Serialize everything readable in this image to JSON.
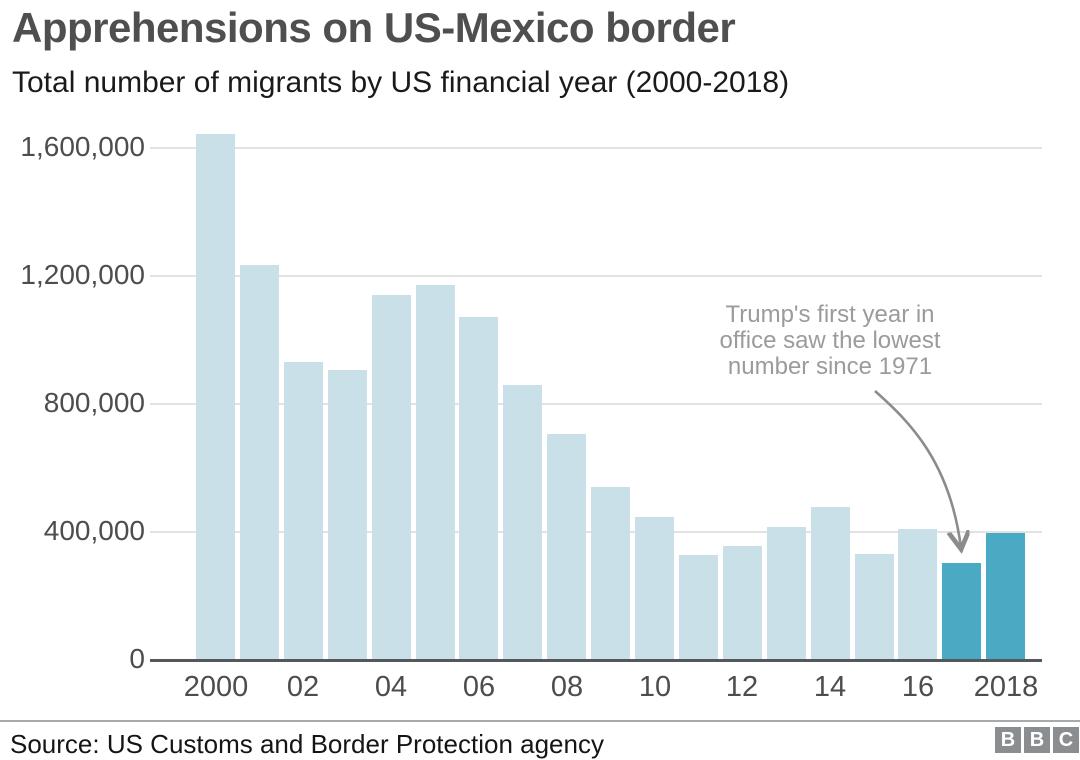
{
  "header": {
    "title": "Apprehensions on US-Mexico border",
    "subtitle": "Total number of migrants by US financial year (2000-2018)"
  },
  "chart_data": {
    "type": "bar",
    "title": "Apprehensions on US-Mexico border",
    "subtitle": "Total number of migrants by US financial year (2000-2018)",
    "xlabel": "US financial year",
    "ylabel": "Total number of migrants",
    "categories": [
      "2000",
      "2001",
      "2002",
      "2003",
      "2004",
      "2005",
      "2006",
      "2007",
      "2008",
      "2009",
      "2010",
      "2011",
      "2012",
      "2013",
      "2014",
      "2015",
      "2016",
      "2017",
      "2018"
    ],
    "values": [
      1643679,
      1235718,
      929809,
      905065,
      1139282,
      1171396,
      1071972,
      858638,
      705005,
      540865,
      447731,
      327577,
      356873,
      414397,
      479371,
      331333,
      408870,
      303916,
      396579
    ],
    "ylim": [
      0,
      1700000
    ],
    "grid": "horizontal",
    "legend": "none",
    "y_ticks": [
      {
        "value": 1600000,
        "label": "1,600,000"
      },
      {
        "value": 1200000,
        "label": "1,200,000"
      },
      {
        "value": 800000,
        "label": "800,000"
      },
      {
        "value": 400000,
        "label": "400,000"
      },
      {
        "value": 0,
        "label": "0"
      }
    ],
    "x_ticks": [
      {
        "index": 0,
        "label": "2000"
      },
      {
        "index": 2,
        "label": "02"
      },
      {
        "index": 4,
        "label": "04"
      },
      {
        "index": 6,
        "label": "06"
      },
      {
        "index": 8,
        "label": "08"
      },
      {
        "index": 10,
        "label": "10"
      },
      {
        "index": 12,
        "label": "12"
      },
      {
        "index": 14,
        "label": "14"
      },
      {
        "index": 16,
        "label": "16"
      },
      {
        "index": 18,
        "label": "2018"
      }
    ],
    "highlight_categories": [
      "2017",
      "2018"
    ],
    "colors": {
      "bar_default": "#c9e0e9",
      "bar_highlight": "#4aa9c3",
      "gridline": "#e2e2e2",
      "axis": "#54585a",
      "annotation_text": "#9b9b9b",
      "arrow": "#8c8c8c"
    },
    "annotation": {
      "text": "Trump's first year in office saw the lowest number since 1971",
      "lines": [
        "Trump's first year in",
        "office saw the lowest",
        "number since 1971"
      ],
      "target_category": "2017"
    }
  },
  "footer": {
    "source": "Source: US Customs and Border Protection agency",
    "logo_letters": [
      "B",
      "B",
      "C"
    ]
  }
}
